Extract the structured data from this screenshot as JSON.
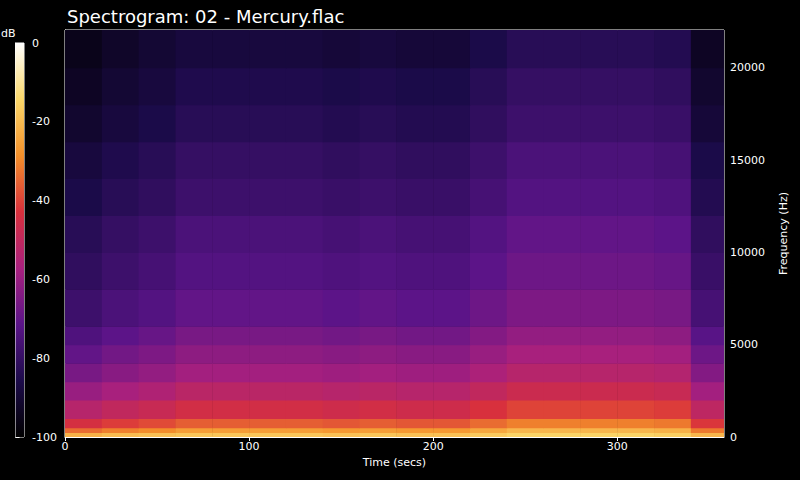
{
  "chart_data": {
    "type": "heatmap",
    "title": "Spectrogram: 02 - Mercury.flac",
    "x_label": "Time (secs)",
    "y_label": "Frequency (Hz)",
    "xlim": [
      0,
      358
    ],
    "xticks": [
      0,
      100,
      200,
      300
    ],
    "ylim": [
      0,
      22050
    ],
    "yticks": [
      0,
      5000,
      10000,
      15000,
      20000
    ],
    "time_bins": [
      0,
      20,
      40,
      60,
      80,
      100,
      120,
      140,
      160,
      180,
      200,
      220,
      240,
      260,
      280,
      300,
      320,
      340,
      358
    ],
    "frequency_bins": [
      0,
      250,
      500,
      1000,
      2000,
      3000,
      4000,
      5000,
      6000,
      8000,
      10000,
      12000,
      14000,
      16000,
      18000,
      20000,
      22050
    ],
    "cells": [
      [
        -22,
        -20,
        -19,
        -18,
        -18,
        -18,
        -18,
        -19,
        -18,
        -19,
        -19,
        -17,
        -15,
        -15,
        -15,
        -15,
        -16,
        -21
      ],
      [
        -34,
        -31,
        -29,
        -26,
        -26,
        -26,
        -26,
        -27,
        -26,
        -27,
        -27,
        -24,
        -21,
        -21,
        -21,
        -21,
        -22,
        -32
      ],
      [
        -44,
        -41,
        -39,
        -36,
        -36,
        -36,
        -36,
        -37,
        -36,
        -37,
        -37,
        -34,
        -31,
        -31,
        -31,
        -31,
        -32,
        -42
      ],
      [
        -53,
        -50,
        -48,
        -45,
        -45,
        -45,
        -45,
        -46,
        -45,
        -46,
        -46,
        -43,
        -40,
        -40,
        -40,
        -40,
        -41,
        -51
      ],
      [
        -60,
        -57,
        -55,
        -52,
        -52,
        -52,
        -52,
        -53,
        -52,
        -53,
        -53,
        -50,
        -47,
        -47,
        -47,
        -47,
        -48,
        -58
      ],
      [
        -66,
        -63,
        -61,
        -58,
        -58,
        -58,
        -58,
        -59,
        -58,
        -59,
        -59,
        -56,
        -53,
        -53,
        -53,
        -53,
        -54,
        -64
      ],
      [
        -70,
        -67,
        -65,
        -62,
        -62,
        -62,
        -62,
        -63,
        -62,
        -63,
        -63,
        -60,
        -57,
        -57,
        -57,
        -57,
        -58,
        -68
      ],
      [
        -74,
        -71,
        -69,
        -66,
        -66,
        -66,
        -66,
        -67,
        -66,
        -67,
        -67,
        -64,
        -61,
        -61,
        -61,
        -61,
        -62,
        -72
      ],
      [
        -78,
        -75,
        -73,
        -70,
        -70,
        -70,
        -70,
        -71,
        -70,
        -71,
        -71,
        -68,
        -65,
        -65,
        -65,
        -65,
        -66,
        -76
      ],
      [
        -81,
        -78,
        -76,
        -73,
        -73,
        -73,
        -73,
        -74,
        -73,
        -74,
        -74,
        -71,
        -68,
        -68,
        -68,
        -68,
        -69,
        -79
      ],
      [
        -83,
        -80,
        -78,
        -75,
        -75,
        -75,
        -75,
        -76,
        -75,
        -76,
        -76,
        -73,
        -70,
        -70,
        -70,
        -70,
        -71,
        -81
      ],
      [
        -86,
        -83,
        -81,
        -78,
        -78,
        -78,
        -78,
        -79,
        -78,
        -79,
        -79,
        -76,
        -73,
        -73,
        -73,
        -73,
        -74,
        -84
      ],
      [
        -88,
        -85,
        -83,
        -80,
        -80,
        -80,
        -80,
        -81,
        -80,
        -81,
        -81,
        -78,
        -75,
        -75,
        -75,
        -75,
        -76,
        -86
      ],
      [
        -91,
        -88,
        -86,
        -83,
        -83,
        -83,
        -83,
        -84,
        -83,
        -84,
        -84,
        -81,
        -78,
        -78,
        -78,
        -78,
        -79,
        -89
      ],
      [
        -93,
        -90,
        -88,
        -85,
        -85,
        -85,
        -85,
        -86,
        -85,
        -86,
        -86,
        -83,
        -80,
        -80,
        -80,
        -80,
        -81,
        -91
      ],
      [
        -95,
        -92,
        -90,
        -88,
        -88,
        -88,
        -88,
        -89,
        -88,
        -89,
        -89,
        -86,
        -83,
        -83,
        -83,
        -83,
        -84,
        -93
      ]
    ],
    "colorbar": {
      "label": "dB",
      "range": [
        -100,
        0
      ],
      "ticks": [
        0,
        -20,
        -40,
        -60,
        -80,
        -100
      ],
      "colors": [
        "#000000",
        "#1c0b4a",
        "#5a1488",
        "#a8207e",
        "#d8303c",
        "#f4902a",
        "#fbd86a",
        "#ffffff"
      ]
    }
  }
}
